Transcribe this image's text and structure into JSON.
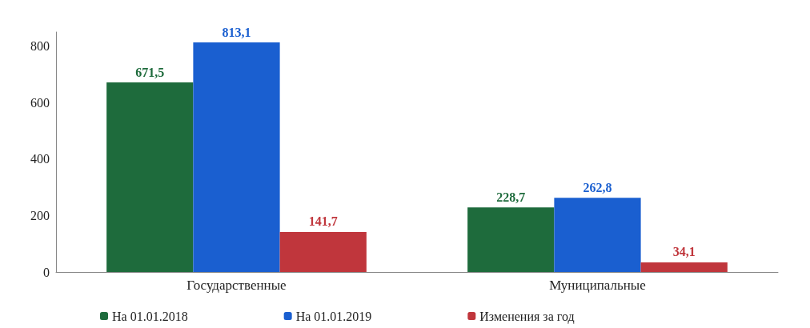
{
  "chart_data": {
    "type": "bar",
    "categories": [
      "Государственные",
      "Муниципальные"
    ],
    "series": [
      {
        "name": "На 01.01.2018",
        "color": "#1e6b3c",
        "values": [
          671.5,
          228.7
        ],
        "value_labels": [
          "671,5",
          "228,7"
        ]
      },
      {
        "name": "На 01.01.2019",
        "color": "#1a5fd0",
        "values": [
          813.1,
          262.8
        ],
        "value_labels": [
          "813,1",
          "262,8"
        ]
      },
      {
        "name": "Изменения за год",
        "color": "#c0363c",
        "values": [
          141.7,
          34.1
        ],
        "value_labels": [
          "141,7",
          "34,1"
        ]
      }
    ],
    "ylim": [
      0,
      850
    ],
    "yticks": [
      0,
      200,
      400,
      600,
      800
    ],
    "grid": false,
    "legend": "bottom"
  }
}
